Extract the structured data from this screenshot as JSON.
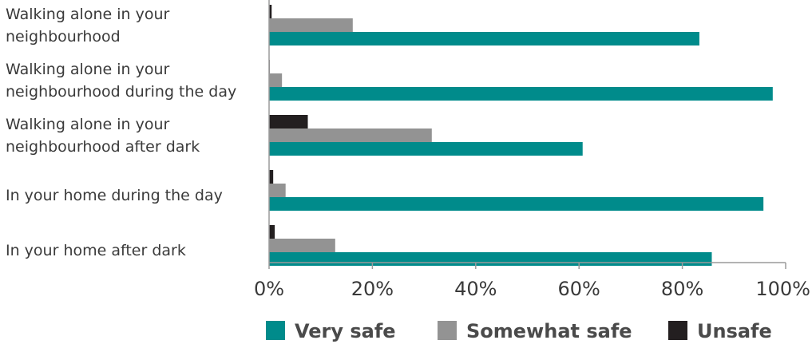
{
  "chart_data": {
    "type": "bar",
    "orientation": "horizontal",
    "categories": [
      [
        "Walking alone in your",
        "neighbourhood"
      ],
      [
        "Walking alone in your",
        "neighbourhood during the day"
      ],
      [
        "Walking alone in your",
        "neighbourhood after dark"
      ],
      [
        "In your home during the day"
      ],
      [
        "In your home after dark"
      ]
    ],
    "series": [
      {
        "name": "Unsafe",
        "color": "#231f20",
        "values": [
          0.5,
          0.1,
          7.5,
          0.8,
          1.1
        ]
      },
      {
        "name": "Somewhat safe",
        "color": "#939393",
        "values": [
          16.2,
          2.5,
          31.5,
          3.2,
          12.8
        ]
      },
      {
        "name": "Very safe",
        "color": "#008b8b",
        "values": [
          83.3,
          97.5,
          60.7,
          95.7,
          85.7
        ]
      }
    ],
    "xlim": [
      0,
      100
    ],
    "x_ticks": [
      "0%",
      "20%",
      "40%",
      "60%",
      "80%",
      "100%"
    ],
    "legend": {
      "position": "bottom",
      "order": [
        "Very safe",
        "Somewhat safe",
        "Unsafe"
      ]
    }
  }
}
